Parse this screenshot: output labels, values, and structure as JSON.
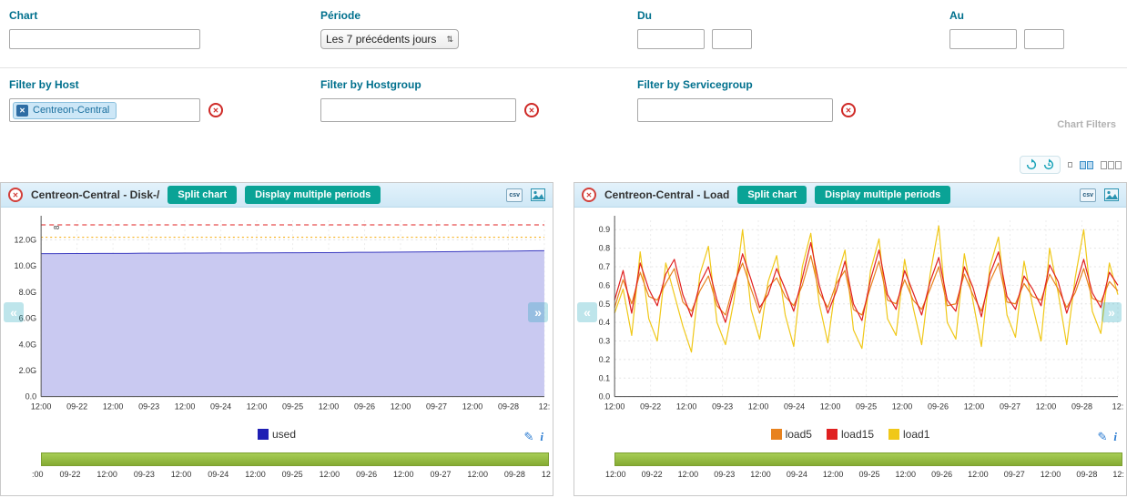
{
  "icons": {
    "close": "✕",
    "chip_remove": "✕",
    "clear": "✕",
    "select_arrows": "⇅",
    "csv": "csv",
    "edit": "✎",
    "info": "i",
    "nav_prev": "«",
    "nav_next": "»"
  },
  "filters": {
    "chart_label": "Chart",
    "chart_value": "",
    "periode_label": "Période",
    "periode_value": "Les 7 précédents jours",
    "du_label": "Du",
    "du_date": "",
    "du_time": "",
    "au_label": "Au",
    "au_date": "",
    "au_time": "",
    "host_label": "Filter by Host",
    "host_chip": "Centreon-Central",
    "hostgroup_label": "Filter by Hostgroup",
    "hostgroup_value": "",
    "servicegroup_label": "Filter by Servicegroup",
    "servicegroup_value": "",
    "panel_caption": "Chart Filters"
  },
  "panels": [
    {
      "title": "Centreon-Central - Disk-/",
      "split_button": "Split chart",
      "periods_button": "Display multiple periods",
      "legend": [
        {
          "name": "used",
          "color": "#1f1fb4"
        }
      ],
      "timeline_labels": [
        ":00",
        "09-22",
        "12:00",
        "09-23",
        "12:00",
        "09-24",
        "12:00",
        "09-25",
        "12:00",
        "09-26",
        "12:00",
        "09-27",
        "12:00",
        "09-28",
        "12"
      ]
    },
    {
      "title": "Centreon-Central - Load",
      "split_button": "Split chart",
      "periods_button": "Display multiple periods",
      "legend": [
        {
          "name": "load5",
          "color": "#e8821e"
        },
        {
          "name": "load15",
          "color": "#e02020"
        },
        {
          "name": "load1",
          "color": "#f0c819"
        }
      ],
      "timeline_labels": [
        "12:00",
        "09-22",
        "12:00",
        "09-23",
        "12:00",
        "09-24",
        "12:00",
        "09-25",
        "12:00",
        "09-26",
        "12:00",
        "09-27",
        "12:00",
        "09-28",
        "12:"
      ]
    }
  ],
  "chart_data": [
    {
      "type": "area",
      "title": "Centreon-Central - Disk-/",
      "ylim": [
        0,
        13.5
      ],
      "annotation": "8",
      "yticks": [
        {
          "v": 0,
          "label": "0.0"
        },
        {
          "v": 2,
          "label": "2.0G"
        },
        {
          "v": 4,
          "label": "4.0G"
        },
        {
          "v": 6,
          "label": "6.0G"
        },
        {
          "v": 8,
          "label": "8.0G"
        },
        {
          "v": 10,
          "label": "10.0G"
        },
        {
          "v": 12,
          "label": "12.0G"
        }
      ],
      "xticklabels": [
        "12:00",
        "09-22",
        "12:00",
        "09-23",
        "12:00",
        "09-24",
        "12:00",
        "09-25",
        "12:00",
        "09-26",
        "12:00",
        "09-27",
        "12:00",
        "09-28",
        "12:"
      ],
      "thresholds": [
        {
          "value": 13.15,
          "color": "#e02222",
          "dash": "5 4"
        },
        {
          "value": 12.2,
          "color": "#f5a800",
          "dash": "2 3"
        }
      ],
      "series": [
        {
          "name": "used",
          "color": "#3a3ac0",
          "fill": "#c9c9f1",
          "values": [
            10.95,
            10.95,
            10.96,
            10.96,
            10.97,
            10.97,
            10.97,
            10.98,
            10.98,
            10.98,
            10.99,
            10.99,
            11.0,
            11.0,
            11.0,
            11.01,
            11.01,
            11.02,
            11.02,
            11.03,
            11.03,
            11.04,
            11.05,
            11.05,
            11.06,
            11.07,
            11.08,
            11.09,
            11.1,
            11.11,
            11.12,
            11.13,
            11.14,
            11.15,
            11.17,
            11.18
          ]
        }
      ]
    },
    {
      "type": "line",
      "title": "Centreon-Central - Load",
      "ylim": [
        0,
        0.95
      ],
      "yticks": [
        {
          "v": 0,
          "label": "0.0"
        },
        {
          "v": 0.1,
          "label": "0.1"
        },
        {
          "v": 0.2,
          "label": "0.2"
        },
        {
          "v": 0.3,
          "label": "0.3"
        },
        {
          "v": 0.4,
          "label": "0.4"
        },
        {
          "v": 0.5,
          "label": "0.5"
        },
        {
          "v": 0.6,
          "label": "0.6"
        },
        {
          "v": 0.7,
          "label": "0.7"
        },
        {
          "v": 0.8,
          "label": "0.8"
        },
        {
          "v": 0.9,
          "label": "0.9"
        }
      ],
      "xticklabels": [
        "12:00",
        "09-22",
        "12:00",
        "09-23",
        "12:00",
        "09-24",
        "12:00",
        "09-25",
        "12:00",
        "09-26",
        "12:00",
        "09-27",
        "12:00",
        "09-28",
        "12:"
      ],
      "thresholds": [],
      "series": [
        {
          "name": "load1",
          "color": "#f0c819",
          "values": [
            0.45,
            0.58,
            0.33,
            0.78,
            0.42,
            0.3,
            0.72,
            0.55,
            0.38,
            0.24,
            0.66,
            0.81,
            0.4,
            0.28,
            0.52,
            0.9,
            0.47,
            0.31,
            0.62,
            0.76,
            0.44,
            0.27,
            0.7,
            0.88,
            0.5,
            0.29,
            0.63,
            0.79,
            0.36,
            0.26,
            0.68,
            0.85,
            0.42,
            0.33,
            0.74,
            0.48,
            0.28,
            0.66,
            0.92,
            0.4,
            0.31,
            0.77,
            0.52,
            0.27,
            0.7,
            0.86,
            0.44,
            0.32,
            0.73,
            0.49,
            0.3,
            0.8,
            0.56,
            0.28,
            0.64,
            0.9,
            0.46,
            0.34,
            0.72,
            0.55
          ]
        },
        {
          "name": "load5",
          "color": "#e8821e",
          "values": [
            0.48,
            0.63,
            0.5,
            0.67,
            0.54,
            0.52,
            0.61,
            0.69,
            0.51,
            0.46,
            0.57,
            0.65,
            0.49,
            0.44,
            0.61,
            0.72,
            0.58,
            0.45,
            0.59,
            0.64,
            0.54,
            0.49,
            0.6,
            0.76,
            0.56,
            0.48,
            0.61,
            0.68,
            0.47,
            0.44,
            0.59,
            0.73,
            0.52,
            0.5,
            0.63,
            0.52,
            0.47,
            0.58,
            0.7,
            0.49,
            0.5,
            0.66,
            0.55,
            0.46,
            0.62,
            0.72,
            0.51,
            0.5,
            0.61,
            0.54,
            0.52,
            0.66,
            0.58,
            0.48,
            0.56,
            0.69,
            0.53,
            0.51,
            0.62,
            0.57
          ]
        },
        {
          "name": "load15",
          "color": "#e02020",
          "values": [
            0.52,
            0.68,
            0.45,
            0.72,
            0.58,
            0.49,
            0.66,
            0.74,
            0.55,
            0.43,
            0.61,
            0.7,
            0.52,
            0.4,
            0.58,
            0.77,
            0.63,
            0.48,
            0.55,
            0.69,
            0.58,
            0.46,
            0.64,
            0.83,
            0.6,
            0.45,
            0.57,
            0.73,
            0.5,
            0.41,
            0.63,
            0.79,
            0.55,
            0.47,
            0.68,
            0.56,
            0.44,
            0.62,
            0.75,
            0.52,
            0.46,
            0.7,
            0.59,
            0.43,
            0.66,
            0.78,
            0.54,
            0.47,
            0.65,
            0.58,
            0.49,
            0.71,
            0.62,
            0.45,
            0.59,
            0.74,
            0.56,
            0.48,
            0.67,
            0.6
          ]
        }
      ]
    }
  ]
}
